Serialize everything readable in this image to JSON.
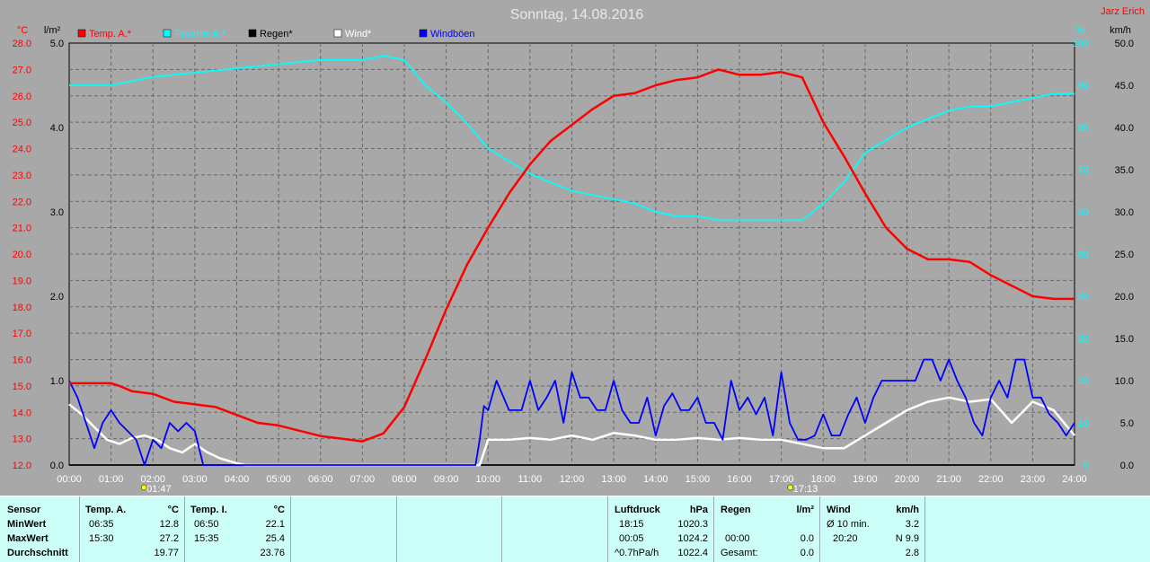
{
  "chart_data": {
    "type": "line",
    "title": "Sonntag, 14.08.2016",
    "author": "Jarz Erich",
    "x_ticks": [
      "00:00",
      "01:00",
      "02:00",
      "03:00",
      "04:00",
      "05:00",
      "06:00",
      "07:00",
      "08:00",
      "09:00",
      "10:00",
      "11:00",
      "12:00",
      "13:00",
      "14:00",
      "15:00",
      "16:00",
      "17:00",
      "18:00",
      "19:00",
      "20:00",
      "21:00",
      "22:00",
      "23:00",
      "24:00"
    ],
    "axes": {
      "temp": {
        "unit": "°C",
        "min": 12.0,
        "max": 28.0,
        "ticks": [
          "28.0",
          "27.0",
          "26.0",
          "25.0",
          "24.0",
          "23.0",
          "22.0",
          "21.0",
          "20.0",
          "19.0",
          "18.0",
          "17.0",
          "16.0",
          "15.0",
          "14.0",
          "13.0",
          "12.0"
        ]
      },
      "rain": {
        "unit": "l/m²",
        "min": 0.0,
        "max": 5.0,
        "ticks": [
          "5.0",
          "4.0",
          "3.0",
          "2.0",
          "1.0",
          "0.0"
        ]
      },
      "humidity": {
        "unit": "%",
        "min": 0,
        "max": 100,
        "ticks": [
          "100",
          "90",
          "80",
          "70",
          "60",
          "50",
          "40",
          "30",
          "20",
          "10",
          "0"
        ]
      },
      "wind": {
        "unit": "km/h",
        "min": 0.0,
        "max": 50.0,
        "ticks": [
          "50.0",
          "45.0",
          "40.0",
          "35.0",
          "30.0",
          "25.0",
          "20.0",
          "15.0",
          "10.0",
          "5.0",
          "0.0"
        ]
      }
    },
    "legend": [
      {
        "label": "Temp. A.*",
        "color": "#ff0000"
      },
      {
        "label": "Feuchte A.*",
        "color": "#00ffff"
      },
      {
        "label": "Regen*",
        "color": "#000000"
      },
      {
        "label": "Wind*",
        "color": "#ffffff"
      },
      {
        "label": "Windböen",
        "color": "#0000ff"
      }
    ],
    "markers": [
      {
        "time": "01:47",
        "symbol": "sunrise"
      },
      {
        "time": "17:13",
        "symbol": "sunset"
      }
    ],
    "series": [
      {
        "name": "Temp. A.*",
        "axis": "temp",
        "color": "#ff0000",
        "x": [
          0,
          0.5,
          1,
          1.2,
          1.5,
          2,
          2.5,
          3,
          3.5,
          4,
          4.5,
          5,
          5.5,
          6,
          6.5,
          7,
          7.5,
          8,
          8.5,
          9,
          9.5,
          10,
          10.5,
          11,
          11.5,
          12,
          12.5,
          13,
          13.5,
          14,
          14.5,
          15,
          15.5,
          16,
          16.5,
          17,
          17.5,
          18,
          18.5,
          19,
          19.5,
          20,
          20.5,
          21,
          21.5,
          22,
          22.5,
          23,
          23.5,
          24
        ],
        "y": [
          15.1,
          15.1,
          15.1,
          15.0,
          14.8,
          14.7,
          14.4,
          14.3,
          14.2,
          13.9,
          13.6,
          13.5,
          13.3,
          13.1,
          13.0,
          12.9,
          13.2,
          14.2,
          16.0,
          17.9,
          19.6,
          21.0,
          22.3,
          23.4,
          24.3,
          24.9,
          25.5,
          26.0,
          26.1,
          26.4,
          26.6,
          26.7,
          27.0,
          26.8,
          26.8,
          26.9,
          26.7,
          25.0,
          23.7,
          22.3,
          21.0,
          20.2,
          19.8,
          19.8,
          19.7,
          19.2,
          18.8,
          18.4,
          18.3,
          18.3
        ]
      },
      {
        "name": "Feuchte A.*",
        "axis": "humidity",
        "color": "#00ffff",
        "x": [
          0,
          1,
          1.5,
          2,
          3,
          4,
          5,
          6,
          7,
          7.5,
          8,
          8.5,
          9,
          9.5,
          10,
          10.5,
          11,
          11.5,
          12,
          12.5,
          13,
          13.5,
          14,
          14.5,
          15,
          15.5,
          16,
          16.5,
          17,
          17.5,
          18,
          18.5,
          19,
          19.5,
          20,
          20.5,
          21,
          21.5,
          22,
          22.5,
          23,
          23.5,
          24
        ],
        "y": [
          90,
          90,
          91,
          92,
          93,
          94,
          95,
          96,
          96,
          97,
          96,
          90,
          86,
          81,
          75,
          72,
          69,
          67,
          65,
          64,
          63,
          62,
          60,
          59,
          59,
          58,
          58,
          58,
          58,
          58,
          62,
          67,
          74,
          77,
          80,
          82,
          84,
          85,
          85,
          86,
          87,
          88,
          88
        ]
      },
      {
        "name": "Wind*",
        "axis": "wind",
        "color": "#ffffff",
        "x": [
          0,
          0.3,
          0.6,
          0.9,
          1.2,
          1.5,
          1.8,
          2.1,
          2.4,
          2.7,
          3.0,
          3.3,
          3.6,
          4.0,
          4.2,
          9.8,
          10.0,
          10.5,
          11,
          11.5,
          12,
          12.5,
          13,
          13.5,
          14,
          14.5,
          15,
          15.5,
          16,
          16.5,
          17,
          17.5,
          18,
          18.5,
          19,
          19.5,
          20,
          20.5,
          21,
          21.5,
          22,
          22.5,
          23,
          23.5,
          24
        ],
        "y": [
          7.2,
          6.0,
          4.5,
          3.0,
          2.5,
          3.2,
          3.5,
          3.0,
          2.0,
          1.5,
          2.5,
          1.5,
          0.8,
          0.2,
          0,
          0,
          3.0,
          3.0,
          3.2,
          3.0,
          3.5,
          3.0,
          3.8,
          3.5,
          3.0,
          3.0,
          3.2,
          3.0,
          3.2,
          3.0,
          3.0,
          2.5,
          2.0,
          2.0,
          3.5,
          5.0,
          6.5,
          7.5,
          8.0,
          7.5,
          7.8,
          5.0,
          7.5,
          6.5,
          3.5
        ]
      },
      {
        "name": "Windböen",
        "axis": "wind",
        "color": "#0000ff",
        "x": [
          0,
          0.2,
          0.4,
          0.6,
          0.8,
          1.0,
          1.2,
          1.4,
          1.6,
          1.8,
          2.0,
          2.2,
          2.4,
          2.6,
          2.8,
          3.0,
          3.2,
          3.4,
          3.6,
          9.7,
          9.8,
          9.9,
          10.0,
          10.2,
          10.5,
          10.8,
          11.0,
          11.2,
          11.4,
          11.6,
          11.8,
          12.0,
          12.2,
          12.4,
          12.6,
          12.8,
          13.0,
          13.2,
          13.4,
          13.6,
          13.8,
          14.0,
          14.2,
          14.4,
          14.6,
          14.8,
          15.0,
          15.2,
          15.4,
          15.6,
          15.8,
          16.0,
          16.2,
          16.4,
          16.6,
          16.8,
          17.0,
          17.2,
          17.4,
          17.6,
          17.8,
          18.0,
          18.2,
          18.4,
          18.6,
          18.8,
          19.0,
          19.2,
          19.4,
          19.6,
          19.8,
          20.0,
          20.2,
          20.4,
          20.6,
          20.8,
          21.0,
          21.2,
          21.4,
          21.6,
          21.8,
          22.0,
          22.2,
          22.4,
          22.6,
          22.8,
          23.0,
          23.2,
          23.4,
          23.6,
          23.8,
          24.0
        ],
        "y": [
          10,
          8,
          5,
          2,
          5,
          6.5,
          5,
          4,
          3,
          0,
          3,
          2,
          5,
          4,
          5,
          4,
          0,
          0,
          0,
          0,
          3,
          7,
          6.5,
          10,
          6.5,
          6.5,
          10,
          6.5,
          8,
          10,
          5,
          11,
          8,
          8,
          6.5,
          6.5,
          10,
          6.5,
          5,
          5,
          8,
          3.5,
          7,
          8.5,
          6.5,
          6.5,
          8,
          5,
          5,
          3,
          10,
          6.5,
          8,
          6,
          8,
          3.5,
          11,
          5,
          3,
          3,
          3.5,
          6,
          3.5,
          3.5,
          6,
          8,
          5,
          8,
          10,
          10,
          10,
          10,
          10,
          12.5,
          12.5,
          10,
          12.5,
          10,
          8,
          5,
          3.5,
          8,
          10,
          8,
          12.5,
          12.5,
          8,
          8,
          6,
          5,
          3.5,
          5
        ]
      },
      {
        "name": "Regen*",
        "axis": "rain",
        "color": "#000000",
        "x": [
          0,
          24
        ],
        "y": [
          0,
          0
        ]
      }
    ]
  },
  "stats": {
    "sensor": {
      "header": "Sensor",
      "rows": [
        "MinWert",
        "MaxWert",
        "Durchschnitt"
      ]
    },
    "temp_a": {
      "header": "Temp. A.",
      "unit": "°C",
      "min_time": "06:35",
      "min_val": "12.8",
      "max_time": "15:30",
      "max_val": "27.2",
      "avg": "19.77"
    },
    "temp_i": {
      "header": "Temp. I.",
      "unit": "°C",
      "min_time": "06:50",
      "min_val": "22.1",
      "max_time": "15:35",
      "max_val": "25.4",
      "avg": "23.76"
    },
    "pressure": {
      "header": "Luftdruck",
      "unit": "hPa",
      "min_time": "18:15",
      "min_val": "1020.3",
      "max_time": "00:05",
      "max_val": "1024.2",
      "trend_label": "^0.7hPa/h",
      "trend_val": "1022.4"
    },
    "rain": {
      "header": "Regen",
      "unit": "l/m²",
      "max_time": "00:00",
      "max_val": "0.0",
      "total_label": "Gesamt:",
      "total_val": "0.0"
    },
    "wind": {
      "header": "Wind",
      "unit": "km/h",
      "avg_label": "Ø 10 min.",
      "avg_val": "3.2",
      "max_time": "20:20",
      "max_val": "N 9.9",
      "avg2": "2.8"
    }
  }
}
